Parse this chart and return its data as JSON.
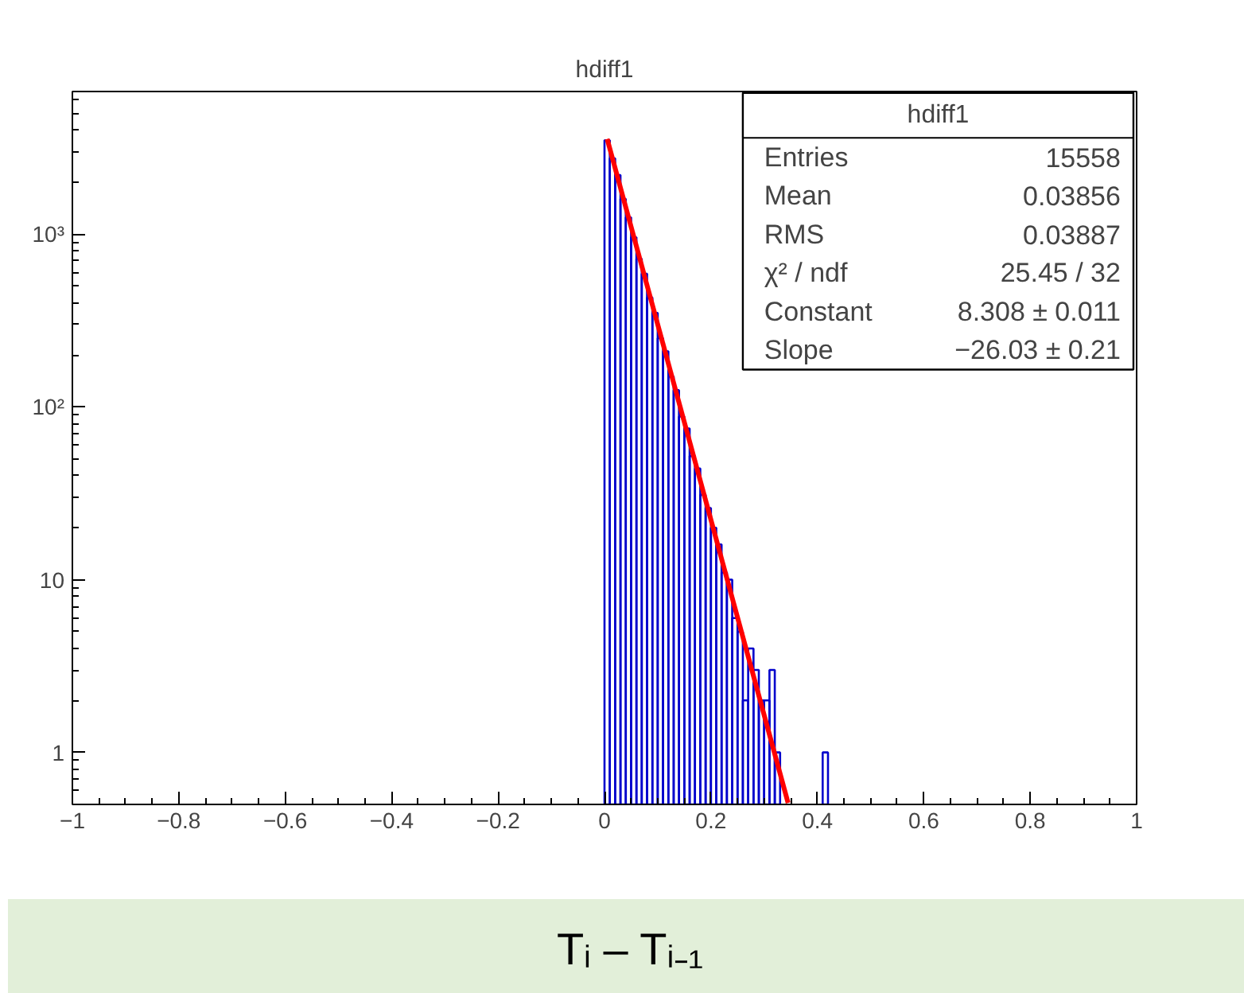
{
  "chart_data": {
    "type": "histogram",
    "title": "hdiff1",
    "xlabel": "Tᵢ – Tᵢ₋₁",
    "bins": [
      0,
      0.01,
      0.02,
      0.03,
      0.04,
      0.05,
      0.06,
      0.07,
      0.08,
      0.09,
      0.1,
      0.11,
      0.12,
      0.13,
      0.14,
      0.15,
      0.16,
      0.17,
      0.18,
      0.19,
      0.2,
      0.21,
      0.22,
      0.23,
      0.24,
      0.25,
      0.26,
      0.27,
      0.28,
      0.29,
      0.3,
      0.31,
      0.32,
      0.33,
      0.34,
      0.35,
      0.36,
      0.37,
      0.38,
      0.39,
      0.4,
      0.41,
      0.42
    ],
    "values": [
      3500,
      2750,
      2200,
      1600,
      1250,
      960,
      720,
      590,
      430,
      350,
      250,
      210,
      150,
      125,
      88,
      75,
      52,
      44,
      31,
      26,
      20,
      16,
      11,
      10,
      6,
      5,
      2,
      4,
      3,
      2,
      2,
      3,
      1,
      null,
      null,
      null,
      null,
      null,
      null,
      null,
      null,
      1
    ],
    "color": "#0000cc",
    "series": [
      {
        "type": "line",
        "color": "#ff0000",
        "x": [
          0.005,
          0.345
        ],
        "values": [
          3560,
          0.51
        ]
      }
    ],
    "xlim": [
      -1,
      1
    ],
    "ylim": [
      0.5,
      6700
    ],
    "log": true,
    "xticks": [
      -1,
      -0.8,
      -0.6,
      -0.4,
      -0.2,
      0,
      0.2,
      0.4,
      0.6,
      0.8,
      1
    ],
    "yticks": [
      {
        "value": 1,
        "label": "1"
      },
      {
        "value": 10,
        "label": "10"
      },
      {
        "value": 100,
        "label": "10²"
      },
      {
        "value": 1000,
        "label": "10³"
      }
    ],
    "grid": false,
    "annotations": [
      "hdiff1",
      "Entries",
      "15558",
      "Mean",
      "0.03856",
      "RMS",
      "0.03887",
      "χ² / ndf",
      "25.45 / 32",
      "Constant",
      "8.308 ± 0.011",
      "Slope",
      "−26.03 ± 0.21"
    ]
  }
}
